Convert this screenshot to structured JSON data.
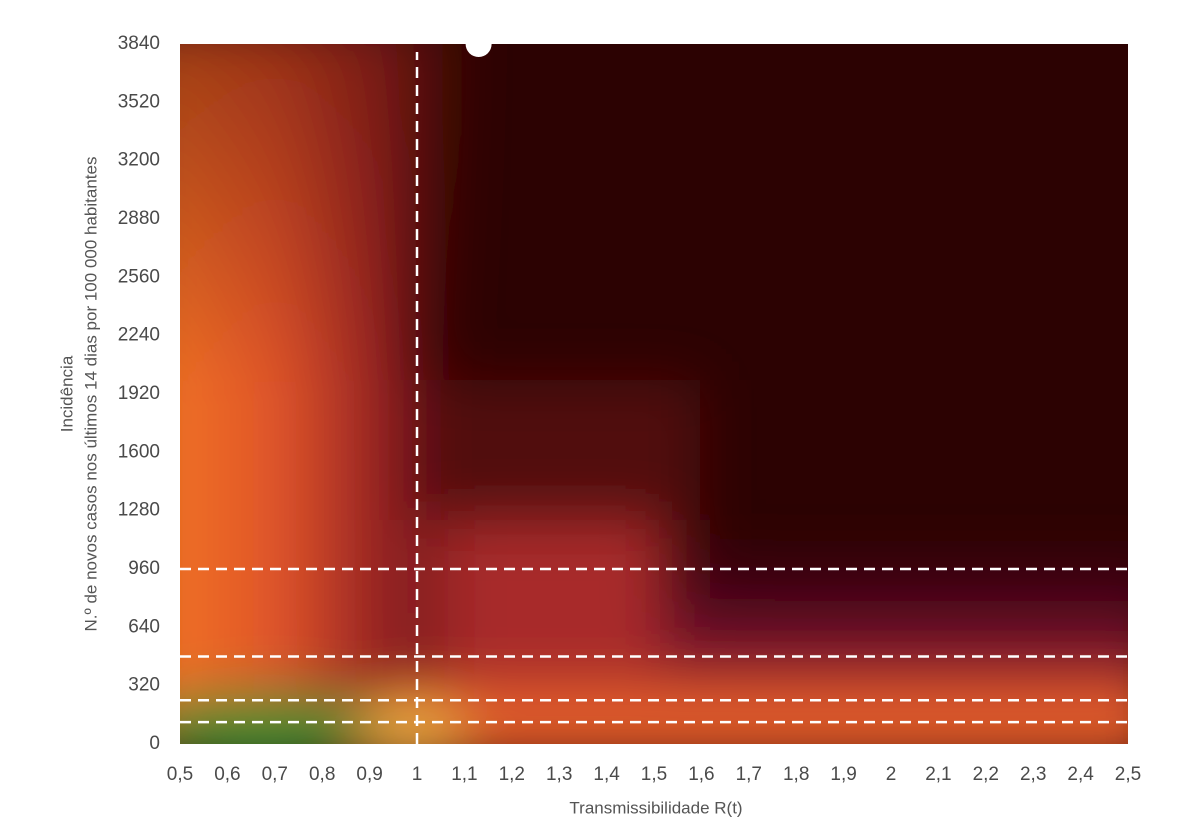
{
  "chart_data": {
    "type": "scatter",
    "x_label": "Transmissibilidade R(t)",
    "y_label": [
      "Incidência",
      "N.º de novos casos nos últimos 14 dias por 100 000 habitantes"
    ],
    "x": [
      1.13
    ],
    "values": [
      3840
    ],
    "color": "#ffffff",
    "xlim": [
      0.5,
      2.5
    ],
    "xticks": [
      {
        "value": 0.5,
        "label": "0,5"
      },
      {
        "value": 0.6,
        "label": "0,6"
      },
      {
        "value": 0.7,
        "label": "0,7"
      },
      {
        "value": 0.8,
        "label": "0,8"
      },
      {
        "value": 0.9,
        "label": "0,9"
      },
      1,
      {
        "value": 1.1,
        "label": "1,1"
      },
      {
        "value": 1.2,
        "label": "1,2"
      },
      {
        "value": 1.3,
        "label": "1,3"
      },
      {
        "value": 1.4,
        "label": "1,4"
      },
      {
        "value": 1.5,
        "label": "1,5"
      },
      {
        "value": 1.6,
        "label": "1,6"
      },
      {
        "value": 1.7,
        "label": "1,7"
      },
      {
        "value": 1.8,
        "label": "1,8"
      },
      {
        "value": 1.9,
        "label": "1,9"
      },
      2,
      {
        "value": 2.1,
        "label": "2,1"
      },
      {
        "value": 2.2,
        "label": "2,2"
      },
      {
        "value": 2.3,
        "label": "2,3"
      },
      {
        "value": 2.4,
        "label": "2,4"
      },
      {
        "value": 2.5,
        "label": "2,5"
      }
    ],
    "ylim": [
      0,
      3840
    ],
    "yticks": [
      0,
      320,
      640,
      960,
      1280,
      1600,
      1920,
      2240,
      2560,
      2880,
      3200,
      3520,
      3840
    ],
    "vlines": [
      1
    ],
    "hlines": [
      960,
      480,
      240,
      120
    ],
    "line_color": "#ffffff"
  }
}
